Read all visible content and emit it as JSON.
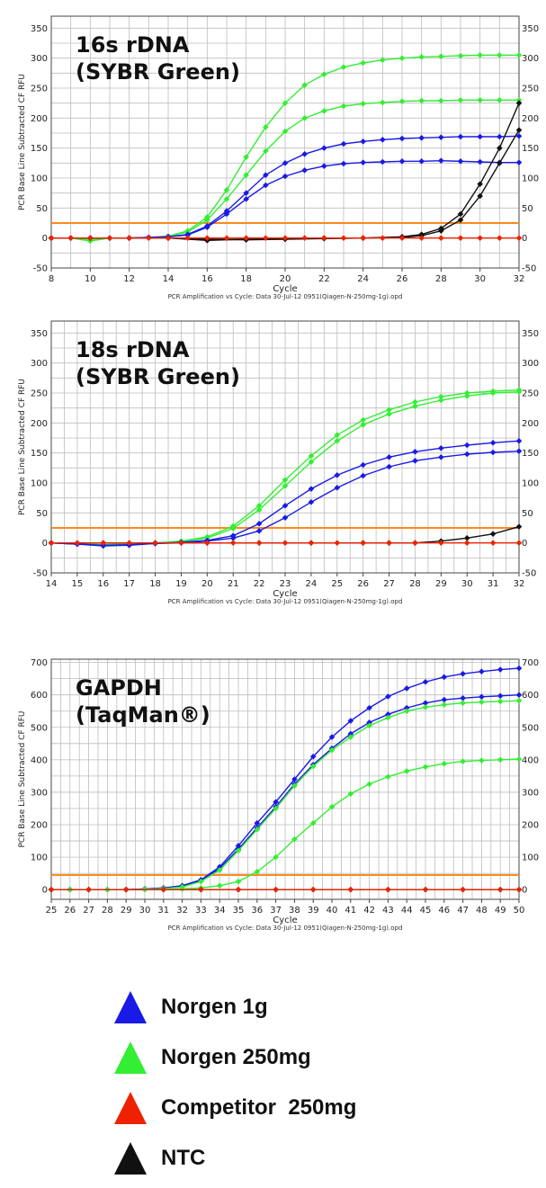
{
  "colors": {
    "norgen_1g": "#1a1ae6",
    "norgen_250mg": "#33ee33",
    "competitor_250mg": "#ee2200",
    "ntc": "#111111",
    "threshold": "#ff8a1a",
    "grid": "#bdbdbd"
  },
  "legend": [
    {
      "label": "Norgen 1g",
      "color": "#1a1ae6"
    },
    {
      "label": "Norgen 250mg",
      "color": "#33ee33"
    },
    {
      "label": "Competitor  250mg",
      "color": "#ee2200"
    },
    {
      "label": "NTC",
      "color": "#111111"
    }
  ],
  "chart_data": [
    {
      "type": "line",
      "title_lines": [
        "16s rDNA",
        "(SYBR Green)"
      ],
      "ylabel": "PCR Base Line Subtracted CF RFU",
      "xlabel": "Cycle",
      "caption": "PCR Amplification vs Cycle: Data 30-Jul-12 0951(Qiagen-N-250mg-1g).opd",
      "xlim": [
        8,
        32
      ],
      "ylim": [
        -50,
        370
      ],
      "xticks": [
        8,
        10,
        12,
        14,
        16,
        18,
        20,
        22,
        24,
        26,
        28,
        30,
        32
      ],
      "yticks": [
        -50,
        0,
        50,
        100,
        150,
        200,
        250,
        300,
        350
      ],
      "threshold": 25,
      "grid": true,
      "series": [
        {
          "color_key": "norgen_250mg",
          "x": [
            8,
            9,
            10,
            11,
            12,
            13,
            14,
            15,
            16,
            17,
            18,
            19,
            20,
            21,
            22,
            23,
            24,
            25,
            26,
            27,
            28,
            29,
            30,
            31,
            32
          ],
          "y": [
            0,
            0,
            -2,
            0,
            0,
            1,
            3,
            12,
            35,
            80,
            135,
            185,
            225,
            255,
            273,
            285,
            292,
            297,
            300,
            302,
            303,
            304,
            305,
            305,
            305
          ]
        },
        {
          "color_key": "norgen_250mg",
          "x": [
            8,
            9,
            10,
            11,
            12,
            13,
            14,
            15,
            16,
            17,
            18,
            19,
            20,
            21,
            22,
            23,
            24,
            25,
            26,
            27,
            28,
            29,
            30,
            31,
            32
          ],
          "y": [
            0,
            0,
            -5,
            0,
            0,
            1,
            3,
            10,
            30,
            65,
            105,
            145,
            178,
            200,
            212,
            220,
            224,
            226,
            228,
            229,
            229,
            230,
            230,
            230,
            230
          ]
        },
        {
          "color_key": "norgen_1g",
          "x": [
            8,
            9,
            10,
            11,
            12,
            13,
            14,
            15,
            16,
            17,
            18,
            19,
            20,
            21,
            22,
            23,
            24,
            25,
            26,
            27,
            28,
            29,
            30,
            31,
            32
          ],
          "y": [
            0,
            0,
            0,
            0,
            0,
            1,
            2,
            6,
            20,
            45,
            75,
            105,
            125,
            140,
            150,
            157,
            161,
            164,
            166,
            167,
            168,
            169,
            169,
            169,
            170
          ]
        },
        {
          "color_key": "norgen_1g",
          "x": [
            8,
            9,
            10,
            11,
            12,
            13,
            14,
            15,
            16,
            17,
            18,
            19,
            20,
            21,
            22,
            23,
            24,
            25,
            26,
            27,
            28,
            29,
            30,
            31,
            32
          ],
          "y": [
            0,
            0,
            0,
            0,
            0,
            1,
            2,
            5,
            18,
            40,
            65,
            88,
            103,
            113,
            120,
            124,
            126,
            127,
            128,
            128,
            129,
            128,
            127,
            126,
            126
          ]
        },
        {
          "color_key": "ntc",
          "x": [
            8,
            10,
            12,
            14,
            16,
            18,
            20,
            22,
            24,
            26,
            27,
            28,
            29,
            30,
            31,
            32
          ],
          "y": [
            0,
            0,
            0,
            0,
            -2,
            -3,
            -2,
            -1,
            0,
            2,
            6,
            16,
            40,
            90,
            150,
            225
          ]
        },
        {
          "color_key": "ntc",
          "x": [
            8,
            10,
            12,
            14,
            16,
            18,
            20,
            22,
            24,
            26,
            27,
            28,
            29,
            30,
            31,
            32
          ],
          "y": [
            0,
            0,
            0,
            0,
            -4,
            -2,
            -1,
            0,
            0,
            1,
            4,
            12,
            30,
            70,
            125,
            180
          ]
        },
        {
          "color_key": "competitor_250mg",
          "x": [
            8,
            9,
            10,
            11,
            12,
            13,
            14,
            15,
            16,
            17,
            18,
            19,
            20,
            21,
            22,
            23,
            24,
            25,
            26,
            27,
            28,
            29,
            30,
            31,
            32
          ],
          "y": [
            0,
            0,
            0,
            0,
            0,
            0,
            0,
            0,
            0,
            0,
            0,
            0,
            0,
            0,
            0,
            0,
            0,
            0,
            0,
            0,
            0,
            0,
            0,
            0,
            0
          ]
        }
      ]
    },
    {
      "type": "line",
      "title_lines": [
        "18s rDNA",
        "(SYBR Green)"
      ],
      "ylabel": "PCR Base Line Subtracted CF RFU",
      "xlabel": "Cycle",
      "caption": "PCR Amplification vs Cycle: Data 30-Jul-12 0951(Qiagen-N-250mg-1g).opd",
      "xlim": [
        14,
        32
      ],
      "ylim": [
        -50,
        370
      ],
      "xticks": [
        14,
        15,
        16,
        17,
        18,
        19,
        20,
        21,
        22,
        23,
        24,
        25,
        26,
        27,
        28,
        29,
        30,
        31,
        32
      ],
      "yticks": [
        -50,
        0,
        50,
        100,
        150,
        200,
        250,
        300,
        350
      ],
      "threshold": 25,
      "grid": true,
      "series": [
        {
          "color_key": "norgen_250mg",
          "x": [
            14,
            15,
            16,
            17,
            18,
            19,
            20,
            21,
            22,
            23,
            24,
            25,
            26,
            27,
            28,
            29,
            30,
            31,
            32
          ],
          "y": [
            0,
            -2,
            -3,
            -2,
            0,
            3,
            10,
            28,
            62,
            105,
            145,
            180,
            205,
            222,
            235,
            244,
            250,
            253,
            255
          ]
        },
        {
          "color_key": "norgen_250mg",
          "x": [
            14,
            15,
            16,
            17,
            18,
            19,
            20,
            21,
            22,
            23,
            24,
            25,
            26,
            27,
            28,
            29,
            30,
            31,
            32
          ],
          "y": [
            0,
            -2,
            -3,
            -2,
            0,
            2,
            8,
            24,
            55,
            95,
            135,
            170,
            197,
            215,
            228,
            238,
            245,
            250,
            252
          ]
        },
        {
          "color_key": "norgen_1g",
          "x": [
            14,
            15,
            16,
            17,
            18,
            19,
            20,
            21,
            22,
            23,
            24,
            25,
            26,
            27,
            28,
            29,
            30,
            31,
            32
          ],
          "y": [
            0,
            -2,
            -5,
            -4,
            -1,
            1,
            4,
            12,
            32,
            62,
            90,
            113,
            130,
            143,
            152,
            158,
            163,
            167,
            170
          ]
        },
        {
          "color_key": "norgen_1g",
          "x": [
            14,
            15,
            16,
            17,
            18,
            19,
            20,
            21,
            22,
            23,
            24,
            25,
            26,
            27,
            28,
            29,
            30,
            31,
            32
          ],
          "y": [
            0,
            -2,
            -4,
            -3,
            -1,
            0,
            3,
            8,
            20,
            42,
            68,
            92,
            112,
            127,
            137,
            143,
            148,
            151,
            153
          ]
        },
        {
          "color_key": "ntc",
          "x": [
            14,
            16,
            18,
            20,
            22,
            24,
            26,
            27,
            28,
            29,
            30,
            31,
            32
          ],
          "y": [
            0,
            0,
            0,
            0,
            0,
            0,
            0,
            0,
            0,
            3,
            8,
            15,
            27
          ]
        },
        {
          "color_key": "competitor_250mg",
          "x": [
            14,
            15,
            16,
            17,
            18,
            19,
            20,
            21,
            22,
            23,
            24,
            25,
            26,
            27,
            28,
            29,
            30,
            31,
            32
          ],
          "y": [
            0,
            0,
            0,
            0,
            0,
            0,
            0,
            0,
            0,
            0,
            0,
            0,
            0,
            0,
            0,
            0,
            0,
            0,
            0
          ]
        }
      ]
    },
    {
      "type": "line",
      "title_lines": [
        "GAPDH",
        "(TaqMan®)"
      ],
      "ylabel": "PCR Base Line Subtracted CF RFU",
      "xlabel": "Cycle",
      "caption": "PCR Amplification vs Cycle: Data 30-Jul-12 0951(Qiagen-N-250mg-1g).opd",
      "xlim": [
        25,
        50
      ],
      "ylim": [
        -30,
        710
      ],
      "xticks": [
        25,
        26,
        27,
        28,
        29,
        30,
        31,
        32,
        33,
        34,
        35,
        36,
        37,
        38,
        39,
        40,
        41,
        42,
        43,
        44,
        45,
        46,
        47,
        48,
        49,
        50
      ],
      "yticks": [
        0,
        100,
        200,
        300,
        400,
        500,
        600,
        700
      ],
      "threshold": 45,
      "grid": true,
      "series": [
        {
          "color_key": "norgen_1g",
          "x": [
            25,
            26,
            27,
            28,
            29,
            30,
            31,
            32,
            33,
            34,
            35,
            36,
            37,
            38,
            39,
            40,
            41,
            42,
            43,
            44,
            45,
            46,
            47,
            48,
            49,
            50
          ],
          "y": [
            0,
            0,
            0,
            0,
            0,
            2,
            5,
            12,
            30,
            70,
            135,
            205,
            270,
            340,
            410,
            470,
            520,
            560,
            595,
            620,
            640,
            655,
            665,
            672,
            678,
            682
          ]
        },
        {
          "color_key": "norgen_1g",
          "x": [
            25,
            26,
            27,
            28,
            29,
            30,
            31,
            32,
            33,
            34,
            35,
            36,
            37,
            38,
            39,
            40,
            41,
            42,
            43,
            44,
            45,
            46,
            47,
            48,
            49,
            50
          ],
          "y": [
            0,
            0,
            0,
            0,
            0,
            2,
            5,
            10,
            28,
            65,
            125,
            190,
            255,
            325,
            385,
            435,
            480,
            515,
            540,
            560,
            575,
            585,
            590,
            594,
            597,
            600
          ]
        },
        {
          "color_key": "norgen_250mg",
          "x": [
            25,
            26,
            27,
            28,
            29,
            30,
            31,
            32,
            33,
            34,
            35,
            36,
            37,
            38,
            39,
            40,
            41,
            42,
            43,
            44,
            45,
            46,
            47,
            48,
            49,
            50
          ],
          "y": [
            0,
            0,
            0,
            0,
            0,
            1,
            3,
            8,
            25,
            60,
            120,
            185,
            250,
            320,
            380,
            430,
            470,
            505,
            530,
            550,
            562,
            570,
            575,
            578,
            580,
            582
          ]
        },
        {
          "color_key": "norgen_250mg",
          "x": [
            25,
            26,
            27,
            28,
            29,
            30,
            31,
            32,
            33,
            34,
            35,
            36,
            37,
            38,
            39,
            40,
            41,
            42,
            43,
            44,
            45,
            46,
            47,
            48,
            49,
            50
          ],
          "y": [
            0,
            0,
            0,
            0,
            0,
            0,
            0,
            2,
            5,
            12,
            25,
            55,
            100,
            155,
            205,
            255,
            295,
            325,
            348,
            365,
            378,
            388,
            395,
            398,
            400,
            402
          ]
        },
        {
          "color_key": "ntc",
          "x": [
            25,
            27,
            29,
            31,
            33,
            35,
            37,
            39,
            41,
            43,
            45,
            47,
            49,
            50
          ],
          "y": [
            0,
            0,
            0,
            0,
            0,
            0,
            0,
            0,
            0,
            0,
            0,
            0,
            0,
            0
          ]
        },
        {
          "color_key": "competitor_250mg",
          "x": [
            25,
            27,
            29,
            31,
            33,
            35,
            37,
            39,
            41,
            43,
            45,
            47,
            49,
            50
          ],
          "y": [
            0,
            0,
            0,
            0,
            0,
            0,
            0,
            0,
            0,
            0,
            0,
            0,
            0,
            0
          ]
        }
      ]
    }
  ]
}
